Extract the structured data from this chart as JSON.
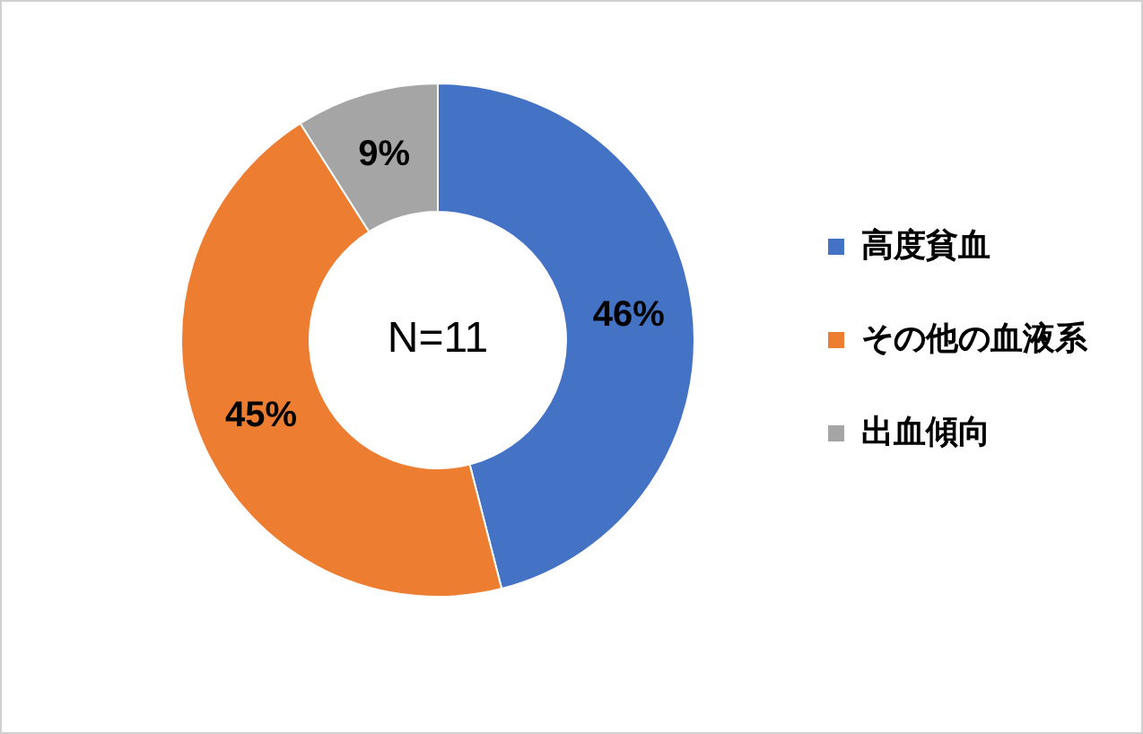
{
  "chart_data": {
    "type": "donut",
    "categories": [
      "高度貧血",
      "その他の血液系",
      "出血傾向"
    ],
    "values": [
      46,
      45,
      9
    ],
    "colors": [
      "#4472c4",
      "#ed7d31",
      "#a5a5a5"
    ],
    "value_labels": [
      "46%",
      "45%",
      "9%"
    ],
    "annotations": [
      "N=11"
    ],
    "legend": "right"
  }
}
